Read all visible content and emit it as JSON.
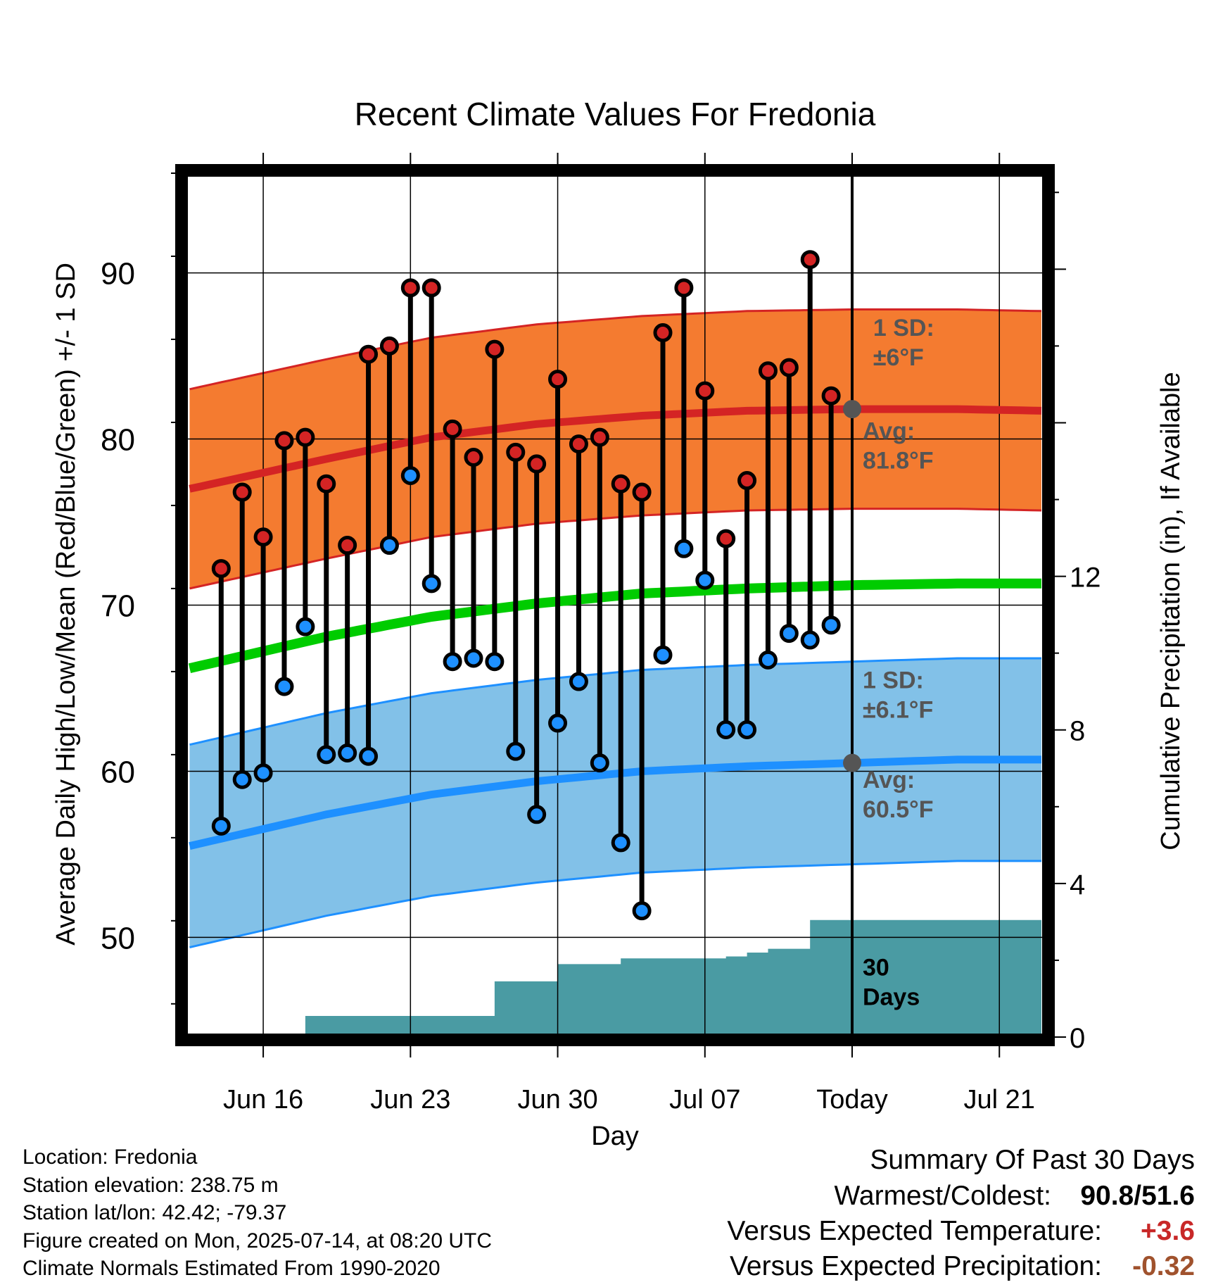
{
  "chart_data": {
    "type": "line",
    "title": "Recent Climate Values For Fredonia",
    "xlabel": "Day",
    "ylabel_left": "Average Daily High/Low/Mean (Red/Blue/Green) +/- 1 SD",
    "ylabel_right": "Cumulative Precipitation (in), If Available",
    "x_ticks": [
      "Jun 16",
      "Jun 23",
      "Jun 30",
      "Jul 07",
      "Today",
      "Jul 21"
    ],
    "x_tick_days": [
      2,
      9,
      16,
      23,
      30,
      37
    ],
    "y_left_ticks": [
      "50",
      "60",
      "70",
      "80",
      "90"
    ],
    "y_left_range": [
      44,
      96
    ],
    "y_right_ticks": [
      "0",
      "4",
      "8",
      "12"
    ],
    "y_right_range": [
      0,
      22.5
    ],
    "xlim": [
      -1.75,
      39.2
    ],
    "daily_highs": [
      72.2,
      76.8,
      74.1,
      79.9,
      80.1,
      77.3,
      73.6,
      85.1,
      85.6,
      89.1,
      89.1,
      80.6,
      78.9,
      85.4,
      79.2,
      78.5,
      83.6,
      79.7,
      80.1,
      77.3,
      76.8,
      86.4,
      89.1,
      82.9,
      74.0,
      77.5,
      84.1,
      84.3,
      90.8,
      82.6
    ],
    "daily_lows": [
      56.7,
      59.5,
      59.9,
      65.1,
      68.7,
      61.0,
      61.1,
      60.9,
      73.6,
      77.8,
      71.3,
      66.6,
      66.8,
      66.6,
      61.2,
      57.4,
      62.9,
      65.4,
      60.5,
      55.7,
      51.6,
      67.0,
      73.4,
      71.5,
      62.5,
      62.5,
      66.7,
      68.3,
      67.9,
      68.8
    ],
    "normal_high_mean": {
      "days": [
        -1.5,
        5,
        10,
        15,
        20,
        25,
        30,
        35,
        39
      ],
      "values": [
        77.0,
        78.8,
        80.1,
        80.9,
        81.4,
        81.7,
        81.8,
        81.8,
        81.7
      ]
    },
    "normal_high_sd": 6,
    "normal_low_mean": {
      "days": [
        -1.5,
        5,
        10,
        15,
        20,
        25,
        30,
        35,
        39
      ],
      "values": [
        55.5,
        57.4,
        58.6,
        59.4,
        60.0,
        60.3,
        60.5,
        60.7,
        60.7
      ]
    },
    "normal_low_sd": 6.1,
    "normal_mean": {
      "days": [
        -1.5,
        5,
        10,
        15,
        20,
        25,
        30,
        35,
        39
      ],
      "values": [
        66.2,
        68.1,
        69.3,
        70.1,
        70.7,
        71.0,
        71.2,
        71.3,
        71.3
      ]
    },
    "cumulative_precip": {
      "days": [
        -1.5,
        0,
        1,
        2,
        3,
        4,
        5,
        6,
        7,
        8,
        9,
        10,
        11,
        12,
        13,
        14,
        15,
        16,
        17,
        18,
        19,
        20,
        21,
        22,
        23,
        24,
        25,
        26,
        27,
        28,
        29,
        30,
        39
      ],
      "values": [
        0,
        0,
        0,
        0,
        0.05,
        0.55,
        0.55,
        0.55,
        0.55,
        0.55,
        0.55,
        0.55,
        0.55,
        0.55,
        1.45,
        1.45,
        1.45,
        1.9,
        1.9,
        1.9,
        2.05,
        2.05,
        2.05,
        2.05,
        2.05,
        2.1,
        2.2,
        2.3,
        2.3,
        3.05,
        3.05,
        3.05,
        3.05
      ]
    },
    "annotations": {
      "high_sd": [
        "1 SD:",
        "±6°F"
      ],
      "high_avg": [
        "Avg:",
        "81.8°F"
      ],
      "low_sd": [
        "1 SD:",
        "±6.1°F"
      ],
      "low_avg": [
        "Avg:",
        "60.5°F"
      ],
      "days": [
        "30",
        "Days"
      ]
    },
    "colors": {
      "high_band": "#f47b30",
      "high_line": "#d42424",
      "low_band": "#82c1e8",
      "low_line": "#1e90ff",
      "mean_line": "#00cc00",
      "precip": "#4a9ba3",
      "high_marker": "#d42424",
      "low_marker": "#1e90ff"
    }
  },
  "footer_left": [
    "Location: Fredonia",
    "Station elevation: 238.75 m",
    "Station lat/lon: 42.42; -79.37",
    "Figure created on Mon, 2025-07-14, at 08:20 UTC",
    "Climate Normals Estimated From 1990-2020"
  ],
  "summary": {
    "heading": "Summary Of Past 30 Days",
    "warm_cold_label": "Warmest/Coldest:",
    "warm_cold_value": "90.8/51.6",
    "temp_label": "Versus Expected Temperature:",
    "temp_value": "+3.6",
    "temp_color": "#c82828",
    "precip_label": "Versus Expected Precipitation:",
    "precip_value": "-0.32",
    "precip_color": "#a0522d"
  }
}
